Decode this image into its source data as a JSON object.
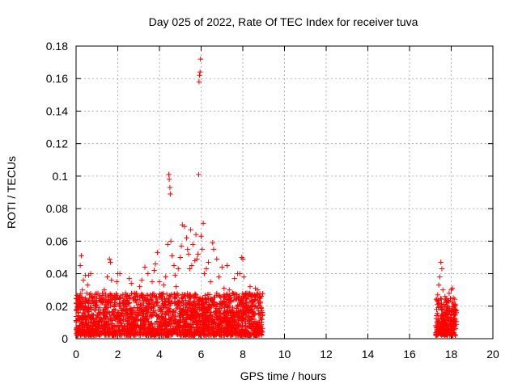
{
  "chart_data": {
    "type": "scatter",
    "title": "Day 025 of 2022, Rate Of TEC Index for receiver tuva",
    "xlabel": "GPS time / hours",
    "ylabel": "ROTI / TECUs",
    "xlim": [
      0,
      20
    ],
    "ylim": [
      0,
      0.18
    ],
    "x_ticks": [
      0,
      2,
      4,
      6,
      8,
      10,
      12,
      14,
      16,
      18,
      20
    ],
    "y_ticks": [
      0,
      0.02,
      0.04,
      0.06,
      0.08,
      0.1,
      0.12,
      0.14,
      0.16,
      0.18
    ],
    "x_tick_labels": [
      "0",
      "2",
      "4",
      "6",
      "8",
      "10",
      "12",
      "14",
      "16",
      "18",
      "20"
    ],
    "y_tick_labels": [
      "0",
      "0.02",
      "0.04",
      "0.06",
      "0.08",
      "0.1",
      "0.12",
      "0.14",
      "0.16",
      "0.18"
    ],
    "grid": true,
    "marker": "+",
    "marker_color": "#ff0000",
    "series": [
      {
        "points": [
          [
            0.05,
            0.005
          ],
          [
            0.1,
            0.012
          ],
          [
            0.15,
            0.02
          ],
          [
            0.2,
            0.045
          ],
          [
            0.25,
            0.051
          ],
          [
            0.3,
            0.03
          ],
          [
            0.35,
            0.036
          ],
          [
            0.45,
            0.039
          ],
          [
            0.55,
            0.033
          ],
          [
            0.6,
            0.039
          ],
          [
            0.7,
            0.04
          ],
          [
            0.8,
            0.025
          ],
          [
            0.95,
            0.022
          ],
          [
            1.05,
            0.028
          ],
          [
            1.2,
            0.024
          ],
          [
            1.35,
            0.03
          ],
          [
            1.5,
            0.038
          ],
          [
            1.6,
            0.049
          ],
          [
            1.65,
            0.047
          ],
          [
            1.7,
            0.036
          ],
          [
            1.85,
            0.022
          ],
          [
            1.95,
            0.035
          ],
          [
            2.0,
            0.04
          ],
          [
            2.1,
            0.04
          ],
          [
            2.25,
            0.025
          ],
          [
            2.4,
            0.021
          ],
          [
            2.55,
            0.037
          ],
          [
            2.65,
            0.034
          ],
          [
            2.8,
            0.028
          ],
          [
            2.9,
            0.022
          ],
          [
            3.05,
            0.032
          ],
          [
            3.15,
            0.036
          ],
          [
            3.3,
            0.044
          ],
          [
            3.45,
            0.04
          ],
          [
            3.55,
            0.027
          ],
          [
            3.65,
            0.035
          ],
          [
            3.75,
            0.042
          ],
          [
            3.8,
            0.046
          ],
          [
            3.9,
            0.053
          ],
          [
            4.0,
            0.035
          ],
          [
            4.1,
            0.025
          ],
          [
            4.2,
            0.033
          ],
          [
            4.3,
            0.038
          ],
          [
            4.4,
            0.058
          ],
          [
            4.45,
            0.101
          ],
          [
            4.47,
            0.098
          ],
          [
            4.5,
            0.093
          ],
          [
            4.52,
            0.089
          ],
          [
            4.55,
            0.06
          ],
          [
            4.6,
            0.051
          ],
          [
            4.7,
            0.045
          ],
          [
            4.75,
            0.039
          ],
          [
            4.8,
            0.032
          ],
          [
            4.9,
            0.043
          ],
          [
            5.0,
            0.05
          ],
          [
            5.05,
            0.057
          ],
          [
            5.1,
            0.07
          ],
          [
            5.2,
            0.069
          ],
          [
            5.3,
            0.062
          ],
          [
            5.35,
            0.055
          ],
          [
            5.4,
            0.052
          ],
          [
            5.45,
            0.043
          ],
          [
            5.5,
            0.067
          ],
          [
            5.55,
            0.045
          ],
          [
            5.6,
            0.058
          ],
          [
            5.7,
            0.048
          ],
          [
            5.75,
            0.064
          ],
          [
            5.8,
            0.049
          ],
          [
            5.85,
            0.052
          ],
          [
            5.88,
            0.101
          ],
          [
            5.9,
            0.158
          ],
          [
            5.92,
            0.162
          ],
          [
            5.95,
            0.164
          ],
          [
            5.97,
            0.172
          ],
          [
            6.0,
            0.063
          ],
          [
            6.05,
            0.055
          ],
          [
            6.1,
            0.071
          ],
          [
            6.15,
            0.04
          ],
          [
            6.25,
            0.043
          ],
          [
            6.35,
            0.047
          ],
          [
            6.45,
            0.035
          ],
          [
            6.55,
            0.059
          ],
          [
            6.6,
            0.055
          ],
          [
            6.75,
            0.049
          ],
          [
            6.85,
            0.038
          ],
          [
            7.0,
            0.044
          ],
          [
            7.1,
            0.031
          ],
          [
            7.25,
            0.045
          ],
          [
            7.35,
            0.03
          ],
          [
            7.5,
            0.028
          ],
          [
            7.6,
            0.037
          ],
          [
            7.75,
            0.04
          ],
          [
            7.85,
            0.04
          ],
          [
            7.95,
            0.05
          ],
          [
            8.0,
            0.049
          ],
          [
            8.05,
            0.038
          ],
          [
            8.2,
            0.028
          ],
          [
            8.35,
            0.032
          ],
          [
            8.5,
            0.027
          ],
          [
            8.6,
            0.031
          ],
          [
            8.7,
            0.03
          ],
          [
            8.8,
            0.025
          ],
          [
            17.3,
            0.018
          ],
          [
            17.35,
            0.027
          ],
          [
            17.4,
            0.033
          ],
          [
            17.45,
            0.038
          ],
          [
            17.5,
            0.047
          ],
          [
            17.55,
            0.043
          ],
          [
            17.6,
            0.03
          ],
          [
            17.7,
            0.026
          ],
          [
            17.8,
            0.022
          ],
          [
            17.9,
            0.028
          ],
          [
            18.0,
            0.03
          ],
          [
            18.05,
            0.031
          ],
          [
            18.1,
            0.025
          ],
          [
            18.15,
            0.02
          ],
          [
            18.2,
            0.015
          ]
        ]
      }
    ],
    "dense_bands": [
      {
        "x": [
          0.0,
          8.95
        ],
        "y": [
          0.002,
          0.028
        ]
      },
      {
        "x": [
          17.25,
          18.25
        ],
        "y": [
          0.002,
          0.025
        ]
      }
    ]
  }
}
